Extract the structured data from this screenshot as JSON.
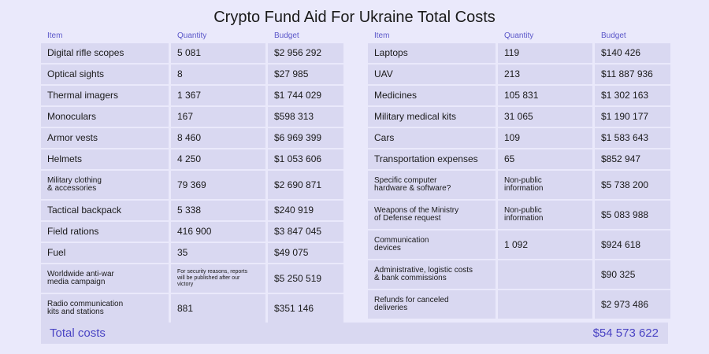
{
  "title": "Crypto Fund Aid For Ukraine Total Costs",
  "headers": {
    "item": "Item",
    "quantity": "Quantity",
    "budget": "Budget"
  },
  "left_rows": [
    {
      "item": "Digital rifle scopes",
      "quantity": "5 081",
      "budget": "$2 956 292"
    },
    {
      "item": "Optical sights",
      "quantity": "8",
      "budget": "$27 985"
    },
    {
      "item": "Thermal imagers",
      "quantity": "1 367",
      "budget": "$1 744 029"
    },
    {
      "item": "Monoculars",
      "quantity": "167",
      "budget": "$598 313"
    },
    {
      "item": "Armor vests",
      "quantity": "8 460",
      "budget": "$6 969 399"
    },
    {
      "item": "Helmets",
      "quantity": "4 250",
      "budget": "$1 053 606"
    },
    {
      "item": "Military clothing\n& accessories",
      "quantity": "79 369",
      "budget": "$2 690 871"
    },
    {
      "item": "Tactical backpack",
      "quantity": "5 338",
      "budget": "$240 919"
    },
    {
      "item": "Field rations",
      "quantity": "416 900",
      "budget": "$3 847 045"
    },
    {
      "item": "Fuel",
      "quantity": "35",
      "budget": "$49 075"
    },
    {
      "item": "Worldwide anti-war\nmedia campaign",
      "quantity": "For security reasons, reports\nwill be published after our\nvictory",
      "budget": "$5 250 519"
    },
    {
      "item": "Radio communication\nkits and stations",
      "quantity": "881",
      "budget": "$351 146"
    }
  ],
  "right_rows": [
    {
      "item": "Laptops",
      "quantity": "119",
      "budget": "$140 426"
    },
    {
      "item": "UAV",
      "quantity": "213",
      "budget": "$11 887 936"
    },
    {
      "item": "Medicines",
      "quantity": "105 831",
      "budget": "$1 302 163"
    },
    {
      "item": "Military medical kits",
      "quantity": "31 065",
      "budget": "$1 190 177"
    },
    {
      "item": "Cars",
      "quantity": "109",
      "budget": "$1 583 643"
    },
    {
      "item": "Transportation expenses",
      "quantity": "65",
      "budget": "$852 947"
    },
    {
      "item": "Specific computer\nhardware & software?",
      "quantity": "Non-public\ninformation",
      "budget": "$5 738 200"
    },
    {
      "item": "Weapons of the Ministry\nof Defense request",
      "quantity": "Non-public\ninformation",
      "budget": "$5 083 988"
    },
    {
      "item": "Communication\ndevices",
      "quantity": "1 092",
      "budget": "$924 618"
    },
    {
      "item": "Administrative, logistic costs\n& bank commissions",
      "quantity": "",
      "budget": "$90 325"
    },
    {
      "item": "Refunds for canceled\ndeliveries",
      "quantity": "",
      "budget": "$2 973 486"
    }
  ],
  "total": {
    "label": "Total costs",
    "value": "$54 573 622"
  }
}
